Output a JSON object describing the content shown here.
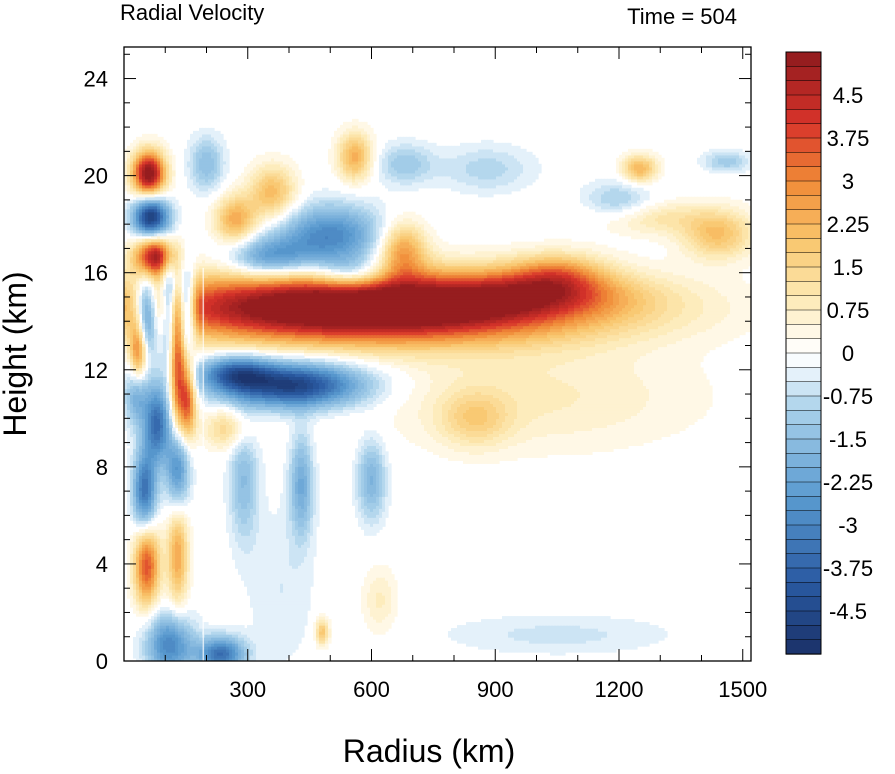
{
  "chart_data": {
    "type": "heatmap",
    "title": "Radial Velocity",
    "subtitle": "Time = 504",
    "xlabel": "Radius (km)",
    "ylabel": "Height (km)",
    "xlim": [
      0,
      1520
    ],
    "ylim": [
      0,
      25.3
    ],
    "x_ticks": [
      300,
      600,
      900,
      1200,
      1500
    ],
    "x_tick_labels": [
      "300",
      "600",
      "900",
      "1200",
      "1500"
    ],
    "y_ticks": [
      0,
      4,
      8,
      12,
      16,
      20,
      24
    ],
    "y_tick_labels": [
      "0",
      "4",
      "8",
      "12",
      "16",
      "20",
      "24"
    ],
    "colorbar": {
      "min": -5.25,
      "max": 5.25,
      "step": 0.25,
      "labels": [
        "4.5",
        "3.75",
        "3",
        "2.25",
        "1.5",
        "0.75",
        "0",
        "-0.75",
        "-1.5",
        "-2.25",
        "-3",
        "-3.75",
        "-4.5"
      ],
      "label_values": [
        4.5,
        3.75,
        3,
        2.25,
        1.5,
        0.75,
        0,
        -0.75,
        -1.5,
        -2.25,
        -3,
        -3.75,
        -4.5
      ],
      "stops": [
        {
          "v": -5.25,
          "color": "#1a3168"
        },
        {
          "v": -4.0,
          "color": "#2a5aa2"
        },
        {
          "v": -2.5,
          "color": "#5a9bd0"
        },
        {
          "v": -1.0,
          "color": "#a8d0ea"
        },
        {
          "v": -0.25,
          "color": "#f0f8fd"
        },
        {
          "v": 0.0,
          "color": "#ffffff"
        },
        {
          "v": 0.25,
          "color": "#fffbf0"
        },
        {
          "v": 1.0,
          "color": "#fce9b2"
        },
        {
          "v": 2.0,
          "color": "#f9c46a"
        },
        {
          "v": 3.0,
          "color": "#f08a36"
        },
        {
          "v": 4.0,
          "color": "#d8342a"
        },
        {
          "v": 5.25,
          "color": "#8f1a1e"
        }
      ]
    },
    "features": [
      {
        "x": 590,
        "y": 14.6,
        "sx": 380,
        "sy": 1.0,
        "v": 7.0
      },
      {
        "x": 1000,
        "y": 15.2,
        "sx": 150,
        "sy": 0.6,
        "v": 1.7
      },
      {
        "x": 410,
        "y": 11.4,
        "sx": 120,
        "sy": 0.65,
        "v": -4.8
      },
      {
        "x": 270,
        "y": 11.9,
        "sx": 60,
        "sy": 0.5,
        "v": -3.0
      },
      {
        "x": 1000,
        "y": 10.9,
        "sx": 280,
        "sy": 1.6,
        "v": 0.8
      },
      {
        "x": 850,
        "y": 10.0,
        "sx": 60,
        "sy": 0.8,
        "v": 1.3
      },
      {
        "x": 60,
        "y": 20.1,
        "sx": 28,
        "sy": 0.65,
        "v": 5.5
      },
      {
        "x": 65,
        "y": 18.3,
        "sx": 30,
        "sy": 0.6,
        "v": -5.0
      },
      {
        "x": 75,
        "y": 16.7,
        "sx": 35,
        "sy": 0.6,
        "v": 5.0
      },
      {
        "x": 55,
        "y": 14.3,
        "sx": 20,
        "sy": 1.1,
        "v": -4.5
      },
      {
        "x": 110,
        "y": 14.7,
        "sx": 15,
        "sy": 1.4,
        "v": -4.0
      },
      {
        "x": 150,
        "y": 14.5,
        "sx": 15,
        "sy": 1.2,
        "v": -4.5
      },
      {
        "x": 35,
        "y": 12.8,
        "sx": 15,
        "sy": 0.9,
        "v": 3.5
      },
      {
        "x": 130,
        "y": 12.3,
        "sx": 14,
        "sy": 2.0,
        "v": 4.0
      },
      {
        "x": 30,
        "y": 11.0,
        "sx": 20,
        "sy": 0.9,
        "v": -2.0
      },
      {
        "x": 80,
        "y": 9.8,
        "sx": 22,
        "sy": 1.1,
        "v": -3.5
      },
      {
        "x": 155,
        "y": 10.8,
        "sx": 14,
        "sy": 1.2,
        "v": 3.5
      },
      {
        "x": 50,
        "y": 7.0,
        "sx": 20,
        "sy": 1.2,
        "v": -3.5
      },
      {
        "x": 130,
        "y": 8.0,
        "sx": 20,
        "sy": 1.2,
        "v": -3.0
      },
      {
        "x": 55,
        "y": 4.0,
        "sx": 22,
        "sy": 1.2,
        "v": 3.8
      },
      {
        "x": 130,
        "y": 4.4,
        "sx": 18,
        "sy": 1.5,
        "v": 2.5
      },
      {
        "x": 110,
        "y": 0.7,
        "sx": 40,
        "sy": 0.9,
        "v": -3.0
      },
      {
        "x": 235,
        "y": 0.3,
        "sx": 40,
        "sy": 0.5,
        "v": -3.5
      },
      {
        "x": 200,
        "y": 20.5,
        "sx": 30,
        "sy": 0.8,
        "v": -1.5
      },
      {
        "x": 270,
        "y": 18.2,
        "sx": 35,
        "sy": 0.7,
        "v": 2.5
      },
      {
        "x": 360,
        "y": 19.3,
        "sx": 40,
        "sy": 0.8,
        "v": 2.2
      },
      {
        "x": 350,
        "y": 16.6,
        "sx": 70,
        "sy": 0.6,
        "v": -2.5
      },
      {
        "x": 500,
        "y": 17.5,
        "sx": 90,
        "sy": 0.9,
        "v": -3.0
      },
      {
        "x": 550,
        "y": 16.0,
        "sx": 60,
        "sy": 0.5,
        "v": -2.0
      },
      {
        "x": 560,
        "y": 20.8,
        "sx": 30,
        "sy": 0.7,
        "v": 2.4
      },
      {
        "x": 675,
        "y": 17.0,
        "sx": 40,
        "sy": 0.8,
        "v": 2.6
      },
      {
        "x": 680,
        "y": 20.5,
        "sx": 50,
        "sy": 0.6,
        "v": -1.2
      },
      {
        "x": 880,
        "y": 20.3,
        "sx": 80,
        "sy": 0.7,
        "v": -0.9
      },
      {
        "x": 1250,
        "y": 20.3,
        "sx": 30,
        "sy": 0.4,
        "v": 2.3
      },
      {
        "x": 1460,
        "y": 20.6,
        "sx": 40,
        "sy": 0.3,
        "v": -1.2
      },
      {
        "x": 1440,
        "y": 17.6,
        "sx": 60,
        "sy": 0.7,
        "v": 2.0
      },
      {
        "x": 1270,
        "y": 18.3,
        "sx": 100,
        "sy": 0.5,
        "v": 1.2
      },
      {
        "x": 1200,
        "y": 18.9,
        "sx": 60,
        "sy": 0.6,
        "v": -1.3
      },
      {
        "x": 1050,
        "y": 16.0,
        "sx": 80,
        "sy": 0.6,
        "v": 2.0
      },
      {
        "x": 250,
        "y": 9.6,
        "sx": 40,
        "sy": 0.6,
        "v": 1.5
      },
      {
        "x": 290,
        "y": 7.5,
        "sx": 25,
        "sy": 1.8,
        "v": -1.5
      },
      {
        "x": 430,
        "y": 7.3,
        "sx": 20,
        "sy": 1.5,
        "v": -2.0
      },
      {
        "x": 600,
        "y": 7.5,
        "sx": 25,
        "sy": 1.2,
        "v": -1.8
      },
      {
        "x": 480,
        "y": 1.2,
        "sx": 12,
        "sy": 0.4,
        "v": 2.0
      },
      {
        "x": 380,
        "y": 3.0,
        "sx": 60,
        "sy": 2.5,
        "v": -0.5
      },
      {
        "x": 1050,
        "y": 1.1,
        "sx": 200,
        "sy": 0.6,
        "v": -0.6
      },
      {
        "x": 620,
        "y": 2.5,
        "sx": 30,
        "sy": 1.0,
        "v": 0.8
      }
    ]
  }
}
